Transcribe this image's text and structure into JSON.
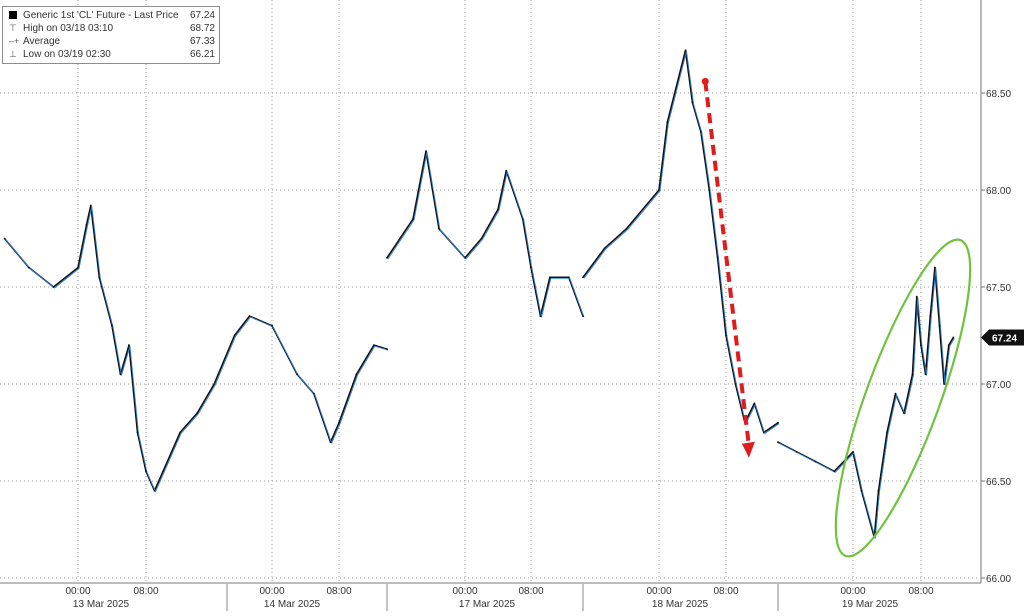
{
  "chart_data": {
    "type": "line",
    "title": "",
    "xlabel": "",
    "ylabel": "",
    "ylim": [
      66.0,
      68.9
    ],
    "y_ticks": [
      "66.00",
      "66.50",
      "67.00",
      "67.50",
      "68.00",
      "68.50"
    ],
    "y_tick_values": [
      66.0,
      66.5,
      67.0,
      67.5,
      68.0,
      68.5
    ],
    "x_ticks": [
      {
        "time": "13 Mar 00:00",
        "label": "00:00"
      },
      {
        "time": "13 Mar 08:00",
        "label": "08:00"
      },
      {
        "time": "14 Mar 00:00",
        "label": "00:00"
      },
      {
        "time": "14 Mar 08:00",
        "label": "08:00"
      },
      {
        "time": "17 Mar 00:00",
        "label": "00:00"
      },
      {
        "time": "17 Mar 08:00",
        "label": "08:00"
      },
      {
        "time": "18 Mar 00:00",
        "label": "00:00"
      },
      {
        "time": "18 Mar 08:00",
        "label": "08:00"
      },
      {
        "time": "19 Mar 00:00",
        "label": "00:00"
      },
      {
        "time": "19 Mar 08:00",
        "label": "08:00"
      }
    ],
    "day_labels": [
      "13 Mar 2025",
      "14 Mar 2025",
      "17 Mar 2025",
      "18 Mar 2025",
      "19 Mar 2025"
    ],
    "grid": true,
    "legend_position": "top-left",
    "legend": {
      "series_name": "Generic 1st 'CL' Future - Last Price",
      "last_price": "67.24",
      "high_label": "High on 03/18 03:10",
      "high_value": "68.72",
      "average_label": "Average",
      "average_value": "67.33",
      "low_label": "Low on 03/19 02:30",
      "low_value": "66.21"
    },
    "last_price_tag": "67.24",
    "series": [
      {
        "name": "Generic 1st 'CL' Future - Last Price",
        "points": [
          [
            "12 Mar 18:00",
            67.75
          ],
          [
            "12 Mar 20:00",
            67.6
          ],
          [
            "12 Mar 22:00",
            67.5
          ],
          [
            "13 Mar 00:00",
            67.6
          ],
          [
            "13 Mar 01:00",
            67.82
          ],
          [
            "13 Mar 01:30",
            67.92
          ],
          [
            "13 Mar 02:30",
            67.55
          ],
          [
            "13 Mar 04:00",
            67.3
          ],
          [
            "13 Mar 05:00",
            67.05
          ],
          [
            "13 Mar 06:00",
            67.2
          ],
          [
            "13 Mar 07:00",
            66.75
          ],
          [
            "13 Mar 08:00",
            66.55
          ],
          [
            "13 Mar 09:00",
            66.45
          ],
          [
            "13 Mar 10:00",
            66.55
          ],
          [
            "13 Mar 12:00",
            66.75
          ],
          [
            "13 Mar 14:00",
            66.85
          ],
          [
            "13 Mar 16:00",
            67.0
          ],
          [
            "13 Mar 19:00",
            67.25
          ],
          [
            "13 Mar 21:00",
            67.35
          ],
          [
            "14 Mar 00:00",
            67.3
          ],
          [
            "14 Mar 03:00",
            67.05
          ],
          [
            "14 Mar 05:00",
            66.95
          ],
          [
            "14 Mar 07:00",
            66.7
          ],
          [
            "14 Mar 08:00",
            66.8
          ],
          [
            "14 Mar 10:00",
            67.05
          ],
          [
            "14 Mar 12:00",
            67.2
          ],
          [
            "14 Mar 13:30",
            67.18
          ],
          [
            "16 Mar 18:00",
            67.65
          ],
          [
            "16 Mar 20:00",
            67.85
          ],
          [
            "16 Mar 21:00",
            68.2
          ],
          [
            "16 Mar 22:00",
            67.8
          ],
          [
            "17 Mar 00:00",
            67.65
          ],
          [
            "17 Mar 02:00",
            67.75
          ],
          [
            "17 Mar 04:00",
            67.9
          ],
          [
            "17 Mar 05:00",
            68.1
          ],
          [
            "17 Mar 07:00",
            67.85
          ],
          [
            "17 Mar 08:00",
            67.6
          ],
          [
            "17 Mar 09:00",
            67.35
          ],
          [
            "17 Mar 10:00",
            67.55
          ],
          [
            "17 Mar 12:00",
            67.55
          ],
          [
            "17 Mar 13:30",
            67.35
          ],
          [
            "17 Mar 17:00",
            67.55
          ],
          [
            "17 Mar 19:00",
            67.7
          ],
          [
            "17 Mar 21:00",
            67.8
          ],
          [
            "18 Mar 00:00",
            68.0
          ],
          [
            "18 Mar 01:00",
            68.35
          ],
          [
            "18 Mar 03:10",
            68.72
          ],
          [
            "18 Mar 04:00",
            68.45
          ],
          [
            "18 Mar 05:00",
            68.3
          ],
          [
            "18 Mar 06:00",
            68.0
          ],
          [
            "18 Mar 07:00",
            67.65
          ],
          [
            "18 Mar 08:00",
            67.25
          ],
          [
            "18 Mar 09:00",
            67.0
          ],
          [
            "18 Mar 10:00",
            66.8
          ],
          [
            "18 Mar 11:00",
            66.9
          ],
          [
            "18 Mar 12:00",
            66.75
          ],
          [
            "18 Mar 13:30",
            66.8
          ],
          [
            "18 Mar 16:00",
            66.7
          ],
          [
            "18 Mar 18:00",
            66.65
          ],
          [
            "18 Mar 20:00",
            66.6
          ],
          [
            "18 Mar 22:00",
            66.55
          ],
          [
            "19 Mar 00:00",
            66.65
          ],
          [
            "19 Mar 01:00",
            66.45
          ],
          [
            "19 Mar 02:30",
            66.21
          ],
          [
            "19 Mar 03:00",
            66.45
          ],
          [
            "19 Mar 04:00",
            66.75
          ],
          [
            "19 Mar 05:00",
            66.95
          ],
          [
            "19 Mar 06:00",
            66.85
          ],
          [
            "19 Mar 07:00",
            67.05
          ],
          [
            "19 Mar 07:30",
            67.45
          ],
          [
            "19 Mar 08:00",
            67.2
          ],
          [
            "19 Mar 08:30",
            67.05
          ],
          [
            "19 Mar 09:00",
            67.35
          ],
          [
            "19 Mar 09:30",
            67.6
          ],
          [
            "19 Mar 10:00",
            67.3
          ],
          [
            "19 Mar 10:30",
            67.0
          ],
          [
            "19 Mar 11:00",
            67.2
          ],
          [
            "19 Mar 11:30",
            67.24
          ]
        ]
      }
    ],
    "annotations": [
      {
        "type": "arrow",
        "color": "#e01b1b",
        "style": "dashed",
        "from": [
          "18 Mar 06:00",
          68.56
        ],
        "to": [
          "18 Mar 10:00",
          66.62
        ]
      },
      {
        "type": "ellipse",
        "color": "#72c240",
        "center": [
          "19 Mar 06:00",
          66.9
        ],
        "note": "highlights rebound"
      }
    ]
  }
}
